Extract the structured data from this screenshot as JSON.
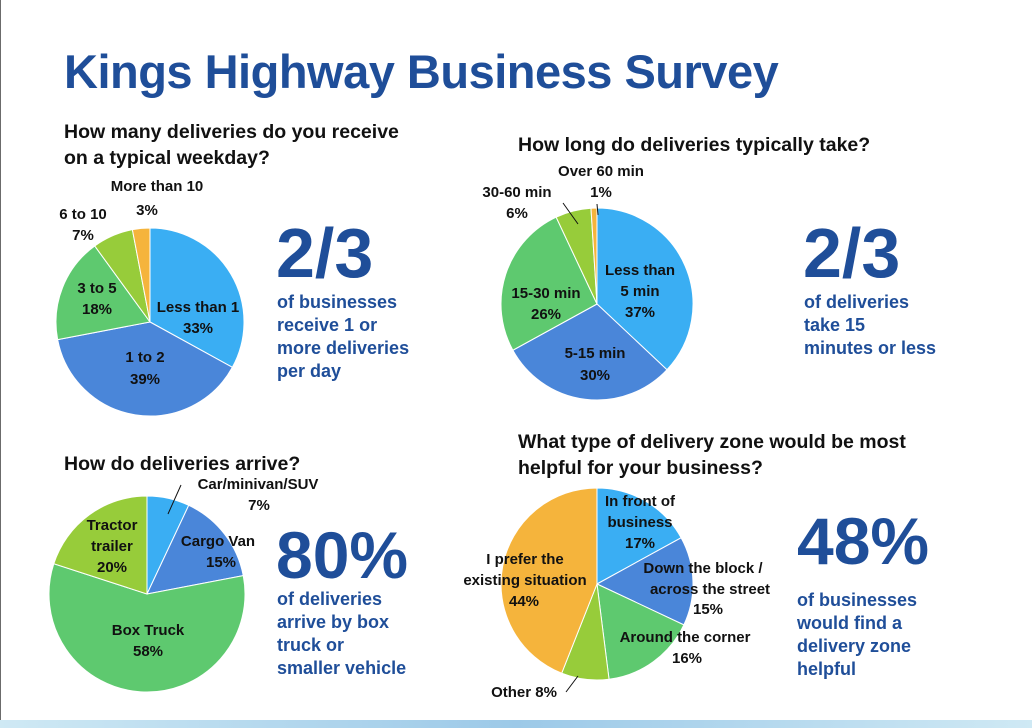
{
  "title": "Kings Highway Business Survey",
  "chart_data": [
    {
      "type": "pie",
      "title": "How many deliveries do you receive on a typical weekday?",
      "slices": [
        {
          "name": "Less than 1",
          "value": 33,
          "label": "33%",
          "color": "#3aaef3"
        },
        {
          "name": "1 to 2",
          "value": 39,
          "label": "39%",
          "color": "#4a86d9"
        },
        {
          "name": "3 to 5",
          "value": 18,
          "label": "18%",
          "color": "#5ec96f"
        },
        {
          "name": "6 to 10",
          "value": 7,
          "label": "7%",
          "color": "#97cc3a"
        },
        {
          "name": "More than 10",
          "value": 3,
          "label": "3%",
          "color": "#f5b43c"
        }
      ],
      "stat": "2/3",
      "stat_text": [
        "of businesses",
        "receive 1 or",
        "more deliveries",
        "per day"
      ]
    },
    {
      "type": "pie",
      "title": "How long do deliveries typically take?",
      "slices": [
        {
          "name": "Less than 5 min",
          "value": 37,
          "label": "37%",
          "color": "#3aaef3"
        },
        {
          "name": "5-15 min",
          "value": 30,
          "label": "30%",
          "color": "#4a86d9"
        },
        {
          "name": "15-30 min",
          "value": 26,
          "label": "26%",
          "color": "#5ec96f"
        },
        {
          "name": "30-60 min",
          "value": 6,
          "label": "6%",
          "color": "#97cc3a"
        },
        {
          "name": "Over 60 min",
          "value": 1,
          "label": "1%",
          "color": "#f5b43c"
        }
      ],
      "stat": "2/3",
      "stat_text": [
        "of deliveries",
        "take 15",
        "minutes or less"
      ]
    },
    {
      "type": "pie",
      "title": "How do deliveries arrive?",
      "slices": [
        {
          "name": "Car/minivan/SUV",
          "value": 7,
          "label": "7%",
          "color": "#3aaef3"
        },
        {
          "name": "Cargo Van",
          "value": 15,
          "label": "15%",
          "color": "#4a86d9"
        },
        {
          "name": "Box Truck",
          "value": 58,
          "label": "58%",
          "color": "#5ec96f"
        },
        {
          "name": "Tractor trailer",
          "value": 20,
          "label": "20%",
          "color": "#97cc3a"
        }
      ],
      "stat": "80%",
      "stat_text": [
        "of deliveries",
        "arrive by box",
        "truck or",
        "smaller vehicle"
      ]
    },
    {
      "type": "pie",
      "title": "What type of delivery zone would be most helpful for your business?",
      "slices": [
        {
          "name": "In front of business",
          "value": 17,
          "label": "17%",
          "color": "#3aaef3"
        },
        {
          "name": "Down the block / across the street",
          "value": 15,
          "label": "15%",
          "color": "#4a86d9"
        },
        {
          "name": "Around the corner",
          "value": 16,
          "label": "16%",
          "color": "#5ec96f"
        },
        {
          "name": "Other",
          "value": 8,
          "label": "8%",
          "color": "#97cc3a"
        },
        {
          "name": "I prefer the existing situation",
          "value": 44,
          "label": "44%",
          "color": "#f5b43c"
        }
      ],
      "stat": "48%",
      "stat_text": [
        "of businesses",
        "would find a",
        "delivery zone",
        "helpful"
      ]
    }
  ],
  "label_text": {
    "c0": [
      "Less than 1",
      "33%",
      "1 to 2",
      "39%",
      "3 to 5",
      "18%",
      "6 to 10",
      "7%",
      "More than 10",
      "3%"
    ],
    "c1": [
      "Less than",
      "5 min",
      "37%",
      "5-15 min",
      "30%",
      "15-30 min",
      "26%",
      "30-60 min",
      "6%",
      "Over 60 min",
      "1%"
    ],
    "c2": [
      "Car/minivan/SUV",
      "7%",
      "Cargo Van",
      "15%",
      "Box Truck",
      "58%",
      "Tractor",
      "trailer",
      "20%"
    ],
    "c3": [
      "In front of",
      "business",
      "17%",
      "Down the block /",
      "across the street",
      "15%",
      "Around the corner",
      "16%",
      "Other 8%",
      "I prefer the",
      "existing situation",
      "44%"
    ]
  }
}
